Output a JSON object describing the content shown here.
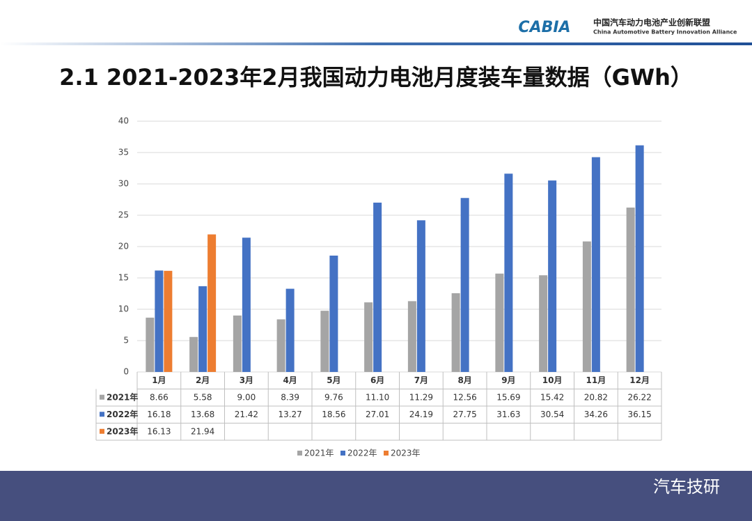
{
  "header": {
    "logo": "CABIA",
    "org_cn": "中国汽车动力电池产业创新联盟",
    "org_en": "China Automotive Battery Innovation Alliance"
  },
  "footer": {
    "watermark": "汽车技研"
  },
  "chart_data": {
    "type": "bar",
    "title": "2.1 2021-2023年2月我国动力电池月度装车量数据（GWh）",
    "categories": [
      "1月",
      "2月",
      "3月",
      "4月",
      "5月",
      "6月",
      "7月",
      "8月",
      "9月",
      "10月",
      "11月",
      "12月"
    ],
    "series": [
      {
        "name": "2021年",
        "color": "#a5a5a5",
        "values": [
          8.66,
          5.58,
          9.0,
          8.39,
          9.76,
          11.1,
          11.29,
          12.56,
          15.69,
          15.42,
          20.82,
          26.22
        ],
        "value_labels": [
          "8.66",
          "5.58",
          "9.00",
          "8.39",
          "9.76",
          "11.10",
          "11.29",
          "12.56",
          "15.69",
          "15.42",
          "20.82",
          "26.22"
        ]
      },
      {
        "name": "2022年",
        "color": "#4472c4",
        "values": [
          16.18,
          13.68,
          21.42,
          13.27,
          18.56,
          27.01,
          24.19,
          27.75,
          31.63,
          30.54,
          34.26,
          36.15
        ],
        "value_labels": [
          "16.18",
          "13.68",
          "21.42",
          "13.27",
          "18.56",
          "27.01",
          "24.19",
          "27.75",
          "31.63",
          "30.54",
          "34.26",
          "36.15"
        ]
      },
      {
        "name": "2023年",
        "color": "#ed7d31",
        "values": [
          16.13,
          21.94,
          null,
          null,
          null,
          null,
          null,
          null,
          null,
          null,
          null,
          null
        ],
        "value_labels": [
          "16.13",
          "21.94",
          null,
          null,
          null,
          null,
          null,
          null,
          null,
          null,
          null,
          null
        ]
      }
    ],
    "ylim": [
      0,
      40
    ],
    "yticks": [
      0,
      5,
      10,
      15,
      20,
      25,
      30,
      35,
      40
    ],
    "grid": true,
    "legend": "bottom"
  }
}
